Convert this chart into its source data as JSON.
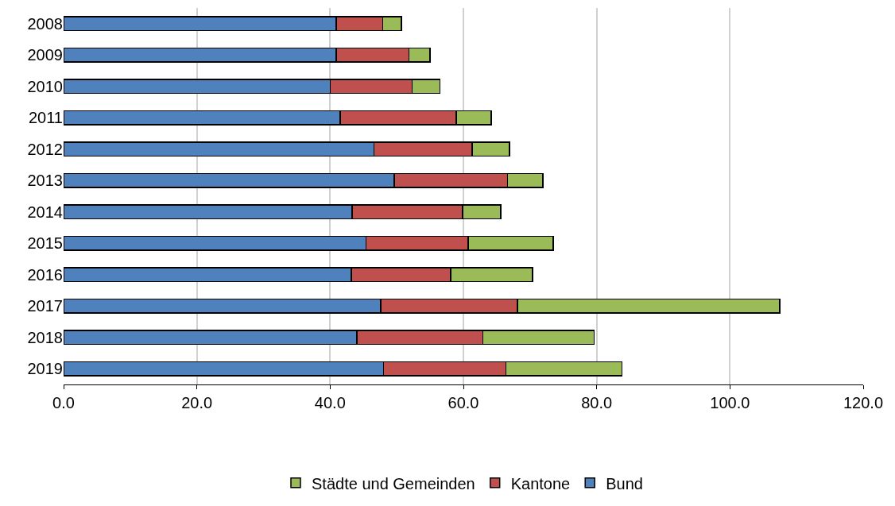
{
  "chart_data": {
    "type": "bar",
    "orientation": "horizontal",
    "stacked": true,
    "categories": [
      "2008",
      "2009",
      "2010",
      "2011",
      "2012",
      "2013",
      "2014",
      "2015",
      "2016",
      "2017",
      "2018",
      "2019"
    ],
    "series": [
      {
        "name": "Bund",
        "color": "#4f81bd",
        "values": [
          40.9,
          40.9,
          40.0,
          41.5,
          46.6,
          49.6,
          43.3,
          45.4,
          43.2,
          47.6,
          44.0,
          48.0
        ]
      },
      {
        "name": "Kantone",
        "color": "#c0504d",
        "values": [
          7.0,
          10.9,
          12.3,
          17.4,
          14.7,
          17.0,
          16.6,
          15.3,
          14.9,
          20.5,
          18.9,
          18.4
        ]
      },
      {
        "name": "Städte und Gemeinden",
        "color": "#9bbb59",
        "values": [
          2.8,
          3.2,
          4.2,
          5.3,
          5.6,
          5.3,
          5.7,
          12.8,
          12.3,
          39.4,
          16.7,
          17.4
        ]
      }
    ],
    "xlim": [
      0,
      120
    ],
    "xticks": [
      {
        "value": 0,
        "label": "0.0"
      },
      {
        "value": 20,
        "label": "20.0"
      },
      {
        "value": 40,
        "label": "40.0"
      },
      {
        "value": 60,
        "label": "60.0"
      },
      {
        "value": 80,
        "label": "80.0"
      },
      {
        "value": 100,
        "label": "100.0"
      },
      {
        "value": 120,
        "label": "120.0"
      }
    ],
    "grid": "x",
    "legend": "bottom"
  }
}
